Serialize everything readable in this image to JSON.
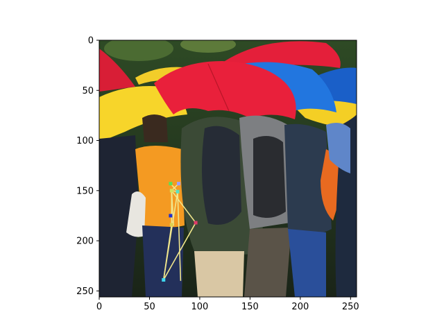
{
  "figure": {
    "type": "image-with-pose-overlay",
    "x_ticks": [
      0,
      50,
      100,
      150,
      200,
      250
    ],
    "y_ticks": [
      0,
      50,
      100,
      150,
      200,
      250
    ],
    "x_range": [
      0,
      256
    ],
    "y_range": [
      256,
      0
    ],
    "colors": {
      "umbrella_red": "#e8203a",
      "umbrella_yellow": "#f7d52a",
      "umbrella_blue": "#1e6fd6",
      "jacket_green": "#3b4a36",
      "vest_orange": "#f49a22",
      "skeleton_line": "#f0e68c"
    },
    "keypoints": [
      {
        "x": 71,
        "y": 143,
        "color": "#57e05a"
      },
      {
        "x": 79,
        "y": 143,
        "color": "#9aa0ff"
      },
      {
        "x": 78,
        "y": 151,
        "color": "#55e0c8"
      },
      {
        "x": 72,
        "y": 150,
        "color": "#d4e05a"
      },
      {
        "x": 71,
        "y": 175,
        "color": "#2030d0"
      },
      {
        "x": 72,
        "y": 184,
        "color": "#e0d050"
      },
      {
        "x": 96,
        "y": 182,
        "color": "#e03a6a"
      },
      {
        "x": 64,
        "y": 239,
        "color": "#40d8f0"
      }
    ],
    "skeleton": [
      [
        0,
        2
      ],
      [
        2,
        3
      ],
      [
        3,
        5
      ],
      [
        5,
        7
      ],
      [
        2,
        7
      ],
      [
        1,
        3
      ],
      [
        3,
        6
      ],
      [
        6,
        7
      ]
    ],
    "extra_segments": [
      [
        78,
        151,
        81,
        240
      ],
      [
        72,
        150,
        74,
        185
      ]
    ]
  }
}
